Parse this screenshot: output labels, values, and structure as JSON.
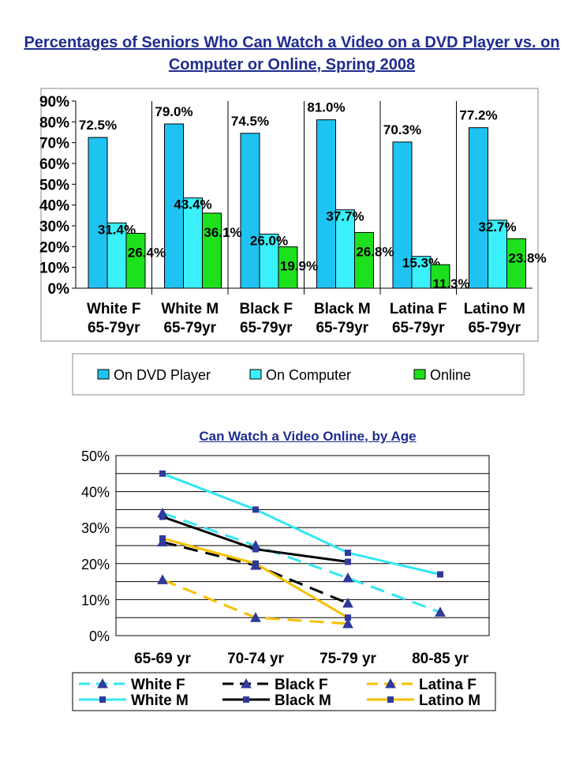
{
  "chart_data": [
    {
      "type": "bar",
      "title": "Percentages of Seniors Who Can Watch a Video on a DVD Player vs. on Computer or Online, Spring 2008",
      "categories": [
        "White F 65-79yr",
        "White M 65-79yr",
        "Black F 65-79yr",
        "Black M 65-79yr",
        "Latina F 65-79yr",
        "Latino M 65-79yr"
      ],
      "category_lines": [
        [
          "White F",
          "65-79yr"
        ],
        [
          "White M",
          "65-79yr"
        ],
        [
          "Black F",
          "65-79yr"
        ],
        [
          "Black M",
          "65-79yr"
        ],
        [
          "Latina F",
          "65-79yr"
        ],
        [
          "Latino M",
          "65-79yr"
        ]
      ],
      "series": [
        {
          "name": "On DVD Player",
          "color": "#1ec3f1",
          "values": [
            72.5,
            79.0,
            74.5,
            81.0,
            70.3,
            77.2
          ],
          "labels": [
            "72.5%",
            "79.0%",
            "74.5%",
            "81.0%",
            "70.3%",
            "77.2%"
          ]
        },
        {
          "name": "On Computer",
          "color": "#3af0fa",
          "values": [
            31.4,
            43.4,
            26.0,
            37.7,
            15.3,
            32.7
          ],
          "labels": [
            "31.4%",
            "43.4%",
            "26.0%",
            "37.7%",
            "15.3%",
            "32.7%"
          ]
        },
        {
          "name": "Online",
          "color": "#1ee11e",
          "values": [
            26.4,
            36.1,
            19.9,
            26.8,
            11.3,
            23.8
          ],
          "labels": [
            "26.4%",
            "36.1%",
            "19.9%",
            "26.8%",
            "11.3%",
            "23.8%"
          ]
        }
      ],
      "ylim": [
        0,
        90
      ],
      "yticks": [
        "0%",
        "10%",
        "20%",
        "30%",
        "40%",
        "50%",
        "60%",
        "70%",
        "80%",
        "90%"
      ],
      "legend_position": "bottom"
    },
    {
      "type": "line",
      "title": "Can Watch a Video Online, by Age",
      "categories": [
        "65-69 yr",
        "70-74 yr",
        "75-79 yr",
        "80-85 yr"
      ],
      "ylim": [
        0,
        50
      ],
      "yticks": [
        "0%",
        "10%",
        "20%",
        "30%",
        "40%",
        "50%"
      ],
      "grid": true,
      "legend_position": "bottom",
      "series": [
        {
          "name": "White F",
          "color": "#33e6f2",
          "dash": true,
          "marker": "triangle",
          "values": [
            34,
            25,
            16,
            6.5
          ]
        },
        {
          "name": "White M",
          "color": "#33e6f2",
          "dash": false,
          "marker": "square",
          "values": [
            45,
            35,
            23,
            17
          ]
        },
        {
          "name": "Black F",
          "color": "#000000",
          "dash": true,
          "marker": "triangle",
          "values": [
            26,
            19.5,
            9,
            null
          ]
        },
        {
          "name": "Black M",
          "color": "#000000",
          "dash": false,
          "marker": "square",
          "values": [
            33,
            24,
            20.5,
            null
          ]
        },
        {
          "name": "Latina F",
          "color": "#f5c000",
          "dash": true,
          "marker": "triangle",
          "values": [
            15.5,
            5,
            3.3,
            null
          ]
        },
        {
          "name": "Latino M",
          "color": "#f5c000",
          "dash": false,
          "marker": "square",
          "values": [
            27,
            20,
            5,
            null
          ]
        }
      ]
    }
  ]
}
